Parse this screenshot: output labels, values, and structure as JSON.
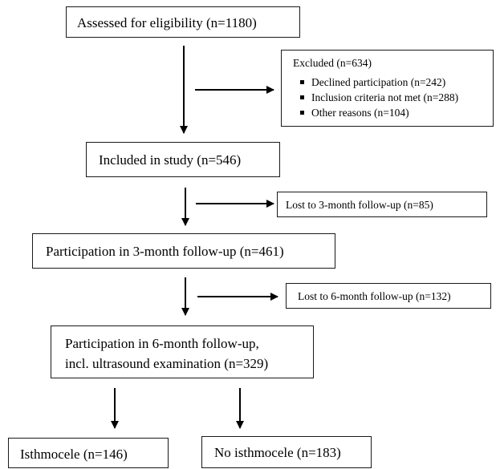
{
  "assessed": {
    "label": "Assessed for eligibility (n=1180)"
  },
  "excluded": {
    "title": "Excluded (n=634)",
    "items": [
      "Declined participation (n=242)",
      "Inclusion criteria not met (n=288)",
      "Other reasons (n=104)"
    ]
  },
  "included": {
    "label": "Included in study (n=546)"
  },
  "lost3": {
    "label": "Lost to 3-month follow-up (n=85)"
  },
  "followup3": {
    "label": "Participation in 3-month follow-up (n=461)"
  },
  "lost6": {
    "label": "Lost to 6-month follow-up (n=132)"
  },
  "followup6": {
    "line1": "Participation in 6-month follow-up,",
    "line2": "incl. ultrasound examination (n=329)"
  },
  "isthmocele": {
    "label": "Isthmocele (n=146)"
  },
  "no_isthmocele": {
    "label": "No isthmocele (n=183)"
  }
}
